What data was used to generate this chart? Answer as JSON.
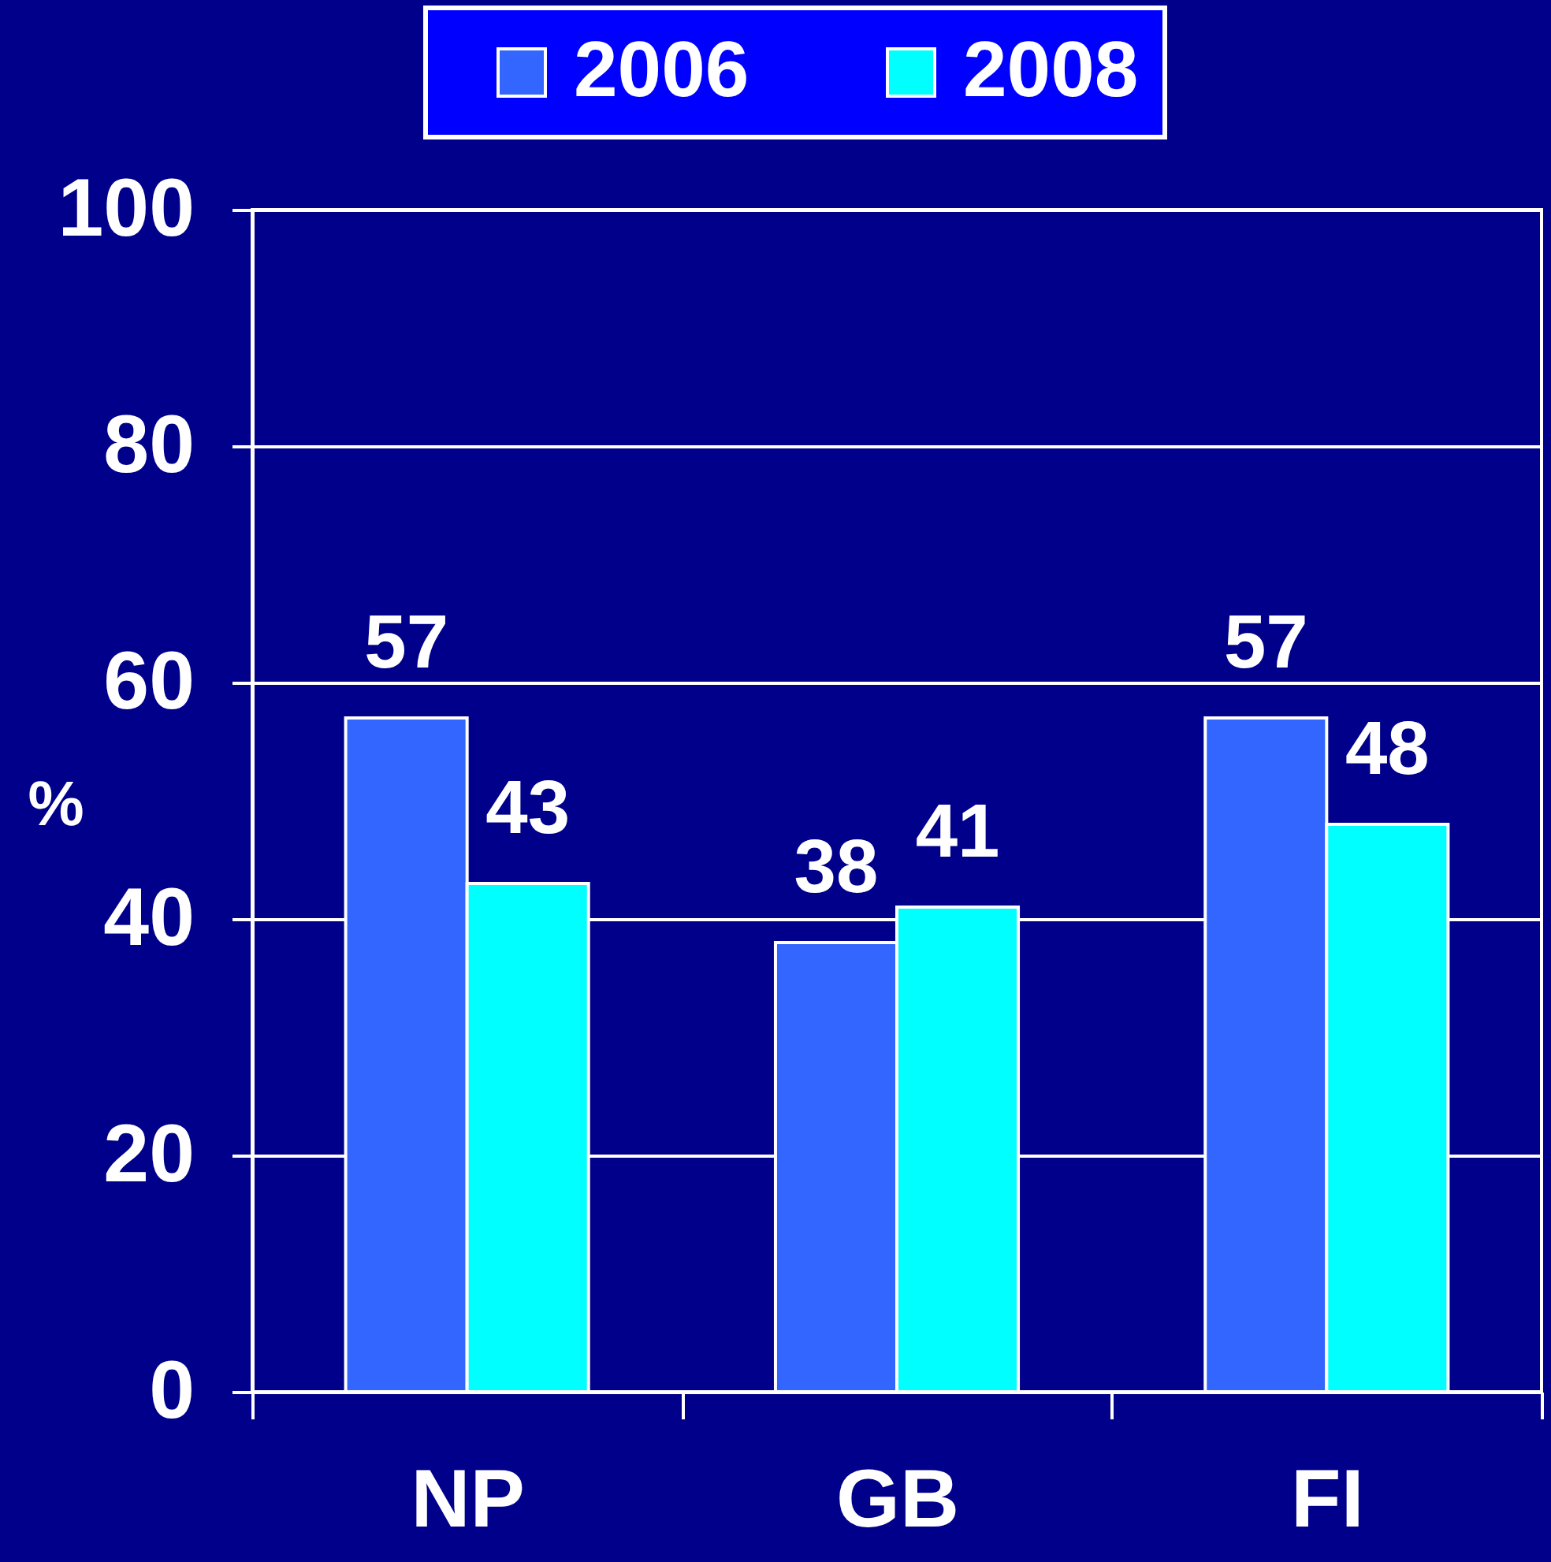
{
  "chart_data": {
    "type": "bar",
    "ylabel": "%",
    "categories": [
      "NP",
      "GB",
      "FI"
    ],
    "series": [
      {
        "name": "2006",
        "color": "#3366ff",
        "values": [
          57,
          38,
          57
        ]
      },
      {
        "name": "2008",
        "color": "#00ffff",
        "values": [
          43,
          41,
          48
        ]
      }
    ],
    "ylim": [
      0,
      100
    ],
    "yticks": [
      0,
      20,
      40,
      60,
      80,
      100
    ],
    "grid": "y",
    "legend": "top",
    "data_labels": true
  }
}
